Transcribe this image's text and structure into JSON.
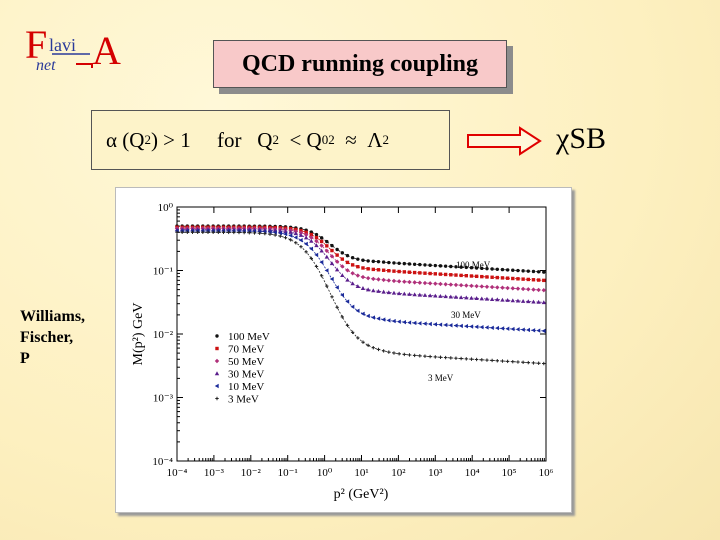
{
  "logo": {
    "part1": "F",
    "part2": "lavi",
    "part3": "net",
    "part4": "A"
  },
  "title": "QCD running coupling",
  "formula": {
    "alpha": "α",
    "q2": "(Q",
    "q2exp": "2",
    "close": ") > 1",
    "for": "for",
    "Q": "Q",
    "Qexp": "2",
    "lt": "< Q",
    "Q0sub": "0",
    "Q0exp": "2",
    "approx": "≈",
    "lambda": "Λ",
    "lambdaexp": "2"
  },
  "csb_label": "χSB",
  "credit": [
    "Williams,",
    "Fischer,",
    "P"
  ],
  "colors": {
    "title_bg": "#f8c9c9",
    "arrow": "#e00000",
    "logo_red": "#d40000",
    "logo_blue": "#2a3a9a"
  },
  "chart_data": {
    "type": "line",
    "xlabel": "p² (GeV²)",
    "ylabel": "M(p²) GeV",
    "x_scale": "log",
    "y_scale": "log",
    "xlim": [
      0.0001,
      1000000
    ],
    "ylim": [
      0.0001,
      1
    ],
    "x_ticks": [
      "10⁻⁴",
      "10⁻³",
      "10⁻²",
      "10⁻¹",
      "10⁰",
      "10¹",
      "10²",
      "10³",
      "10⁴",
      "10⁵",
      "10⁶"
    ],
    "y_ticks": [
      "10⁰",
      "10⁻¹",
      "10⁻²",
      "10⁻³",
      "10⁻⁴"
    ],
    "legend_position": "bottom-left",
    "series": [
      {
        "name": "100 MeV",
        "color": "#111111",
        "marker": "circle",
        "ir": 0.5,
        "uv": 0.135
      },
      {
        "name": "70 MeV",
        "color": "#cc1111",
        "marker": "square",
        "ir": 0.48,
        "uv": 0.1
      },
      {
        "name": "50 MeV",
        "color": "#b0307a",
        "marker": "diamond",
        "ir": 0.46,
        "uv": 0.07
      },
      {
        "name": "30 MeV",
        "color": "#5a1e8c",
        "marker": "triangle",
        "ir": 0.44,
        "uv": 0.045
      },
      {
        "name": "10 MeV",
        "color": "#1a2a9a",
        "marker": "triangle-left",
        "ir": 0.42,
        "uv": 0.016
      },
      {
        "name": "3 MeV",
        "color": "#222222",
        "marker": "plus",
        "ir": 0.4,
        "uv": 0.0049
      }
    ],
    "annotations": [
      "100 MeV",
      "30 MeV",
      "3 MeV"
    ]
  }
}
